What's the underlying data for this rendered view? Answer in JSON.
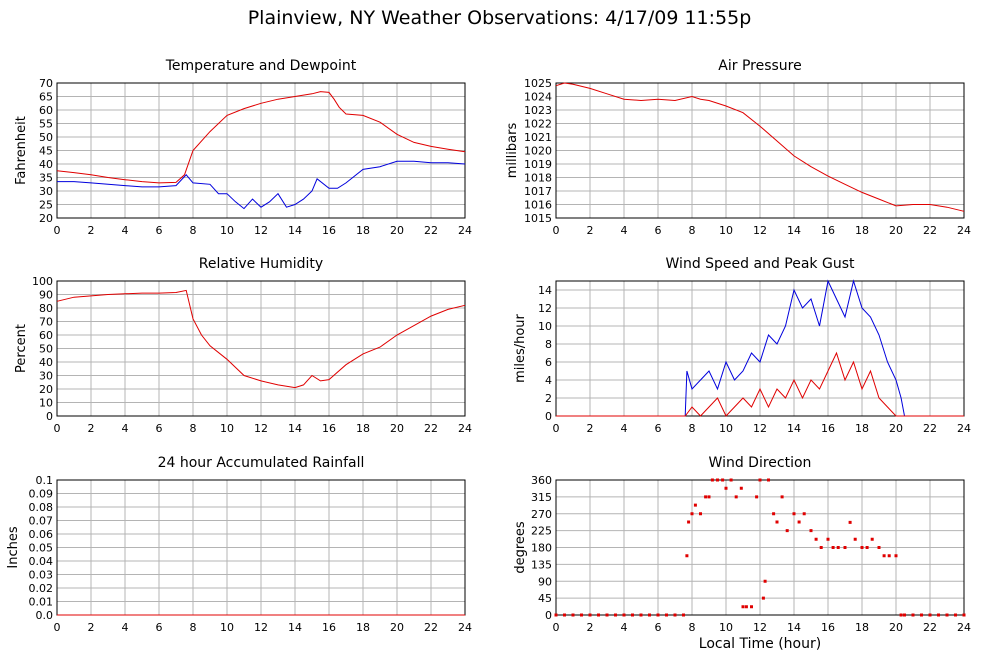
{
  "title": "Plainview, NY Weather Observations: 4/17/09 11:55p",
  "xlabel": "Local Time (hour)",
  "colors": {
    "red": "#e00000",
    "blue": "#0000dd",
    "grid": "#b4b4b4",
    "axis": "#000000"
  },
  "chart_data": [
    {
      "type": "line",
      "title": "Temperature and Dewpoint",
      "ylabel": "Fahrenheit",
      "xlim": [
        0,
        24
      ],
      "ylim": [
        20,
        70
      ],
      "xticks": [
        0,
        2,
        4,
        6,
        8,
        10,
        12,
        14,
        16,
        18,
        20,
        22,
        24
      ],
      "yticks": [
        20,
        25,
        30,
        35,
        40,
        45,
        50,
        55,
        60,
        65,
        70
      ],
      "grid": true,
      "series": [
        {
          "color": "red",
          "x": [
            0,
            1,
            2,
            3,
            4,
            5,
            6,
            7,
            7.5,
            8,
            9,
            10,
            11,
            12,
            13,
            14,
            15,
            15.5,
            16,
            16.3,
            16.6,
            17,
            18,
            19,
            20,
            21,
            22,
            23,
            24
          ],
          "y": [
            37.5,
            36.8,
            36,
            35,
            34.2,
            33.5,
            33,
            33.2,
            36,
            45,
            52,
            58,
            60.5,
            62.5,
            64,
            65,
            66,
            66.8,
            66.5,
            64,
            61,
            58.5,
            58,
            55.5,
            51,
            48,
            46.5,
            45.5,
            44.5
          ]
        },
        {
          "color": "blue",
          "x": [
            0,
            1,
            2,
            3,
            4,
            5,
            6,
            7,
            7.6,
            8,
            9,
            9.5,
            10,
            10.5,
            11,
            11.5,
            12,
            12.5,
            13,
            13.5,
            14,
            14.5,
            15,
            15.3,
            16,
            16.5,
            17,
            18,
            19,
            20,
            21,
            22,
            23,
            24
          ],
          "y": [
            33.5,
            33.5,
            33,
            32.5,
            32,
            31.5,
            31.5,
            32,
            36,
            33,
            32.5,
            29,
            29,
            26,
            23.5,
            27,
            24,
            26,
            29,
            24,
            25,
            27,
            30,
            34.5,
            31,
            31,
            33,
            38,
            39,
            41,
            41,
            40.5,
            40.5,
            40
          ]
        }
      ]
    },
    {
      "type": "line",
      "title": "Air Pressure",
      "ylabel": "millibars",
      "xlim": [
        0,
        24
      ],
      "ylim": [
        1015,
        1025
      ],
      "xticks": [
        0,
        2,
        4,
        6,
        8,
        10,
        12,
        14,
        16,
        18,
        20,
        22,
        24
      ],
      "yticks": [
        1015,
        1016,
        1017,
        1018,
        1019,
        1020,
        1021,
        1022,
        1023,
        1024,
        1025
      ],
      "grid": true,
      "series": [
        {
          "color": "red",
          "x": [
            0,
            0.5,
            1,
            2,
            3,
            4,
            5,
            6,
            7,
            8,
            8.5,
            9,
            10,
            11,
            12,
            13,
            14,
            15,
            16,
            17,
            18,
            19,
            20,
            21,
            22,
            23,
            24
          ],
          "y": [
            1024.8,
            1025,
            1024.9,
            1024.6,
            1024.2,
            1023.8,
            1023.7,
            1023.8,
            1023.7,
            1024,
            1023.8,
            1023.7,
            1023.3,
            1022.8,
            1021.8,
            1020.7,
            1019.6,
            1018.8,
            1018.1,
            1017.5,
            1016.9,
            1016.4,
            1015.9,
            1016,
            1016,
            1015.8,
            1015.5
          ]
        }
      ]
    },
    {
      "type": "line",
      "title": "Relative Humidity",
      "ylabel": "Percent",
      "xlim": [
        0,
        24
      ],
      "ylim": [
        0,
        100
      ],
      "xticks": [
        0,
        2,
        4,
        6,
        8,
        10,
        12,
        14,
        16,
        18,
        20,
        22,
        24
      ],
      "yticks": [
        0,
        10,
        20,
        30,
        40,
        50,
        60,
        70,
        80,
        90,
        100
      ],
      "grid": true,
      "series": [
        {
          "color": "red",
          "x": [
            0,
            1,
            2,
            3,
            4,
            5,
            6,
            7,
            7.6,
            8,
            8.5,
            9,
            10,
            11,
            12,
            13,
            14,
            14.5,
            15,
            15.5,
            16,
            17,
            18,
            19,
            20,
            21,
            22,
            23,
            24
          ],
          "y": [
            85,
            88,
            89,
            90,
            90.5,
            91,
            91,
            91.5,
            93,
            72,
            60,
            52,
            42,
            30,
            26,
            23,
            21,
            23,
            30,
            26,
            27,
            38,
            46,
            51,
            60,
            67,
            74,
            79,
            82
          ]
        }
      ]
    },
    {
      "type": "line",
      "title": "Wind Speed and Peak Gust",
      "ylabel": "miles/hour",
      "xlim": [
        0,
        24
      ],
      "ylim": [
        0,
        15
      ],
      "xticks": [
        0,
        2,
        4,
        6,
        8,
        10,
        12,
        14,
        16,
        18,
        20,
        22,
        24
      ],
      "yticks": [
        0,
        2,
        4,
        6,
        8,
        10,
        12,
        14
      ],
      "grid": true,
      "series": [
        {
          "color": "blue",
          "x": [
            0,
            7.6,
            7.7,
            8,
            8.5,
            9,
            9.5,
            10,
            10.5,
            11,
            11.5,
            12,
            12.5,
            13,
            13.5,
            14,
            14.5,
            15,
            15.5,
            16,
            16.5,
            17,
            17.5,
            18,
            18.5,
            19,
            19.5,
            20,
            20.3,
            20.5,
            24
          ],
          "y": [
            0,
            0,
            5,
            3,
            4,
            5,
            3,
            6,
            4,
            5,
            7,
            6,
            9,
            8,
            10,
            14,
            12,
            13,
            10,
            15,
            13,
            11,
            15,
            12,
            11,
            9,
            6,
            4,
            2,
            0,
            0
          ]
        },
        {
          "color": "red",
          "x": [
            0,
            7.6,
            8,
            8.5,
            9,
            9.5,
            10,
            10.5,
            11,
            11.5,
            12,
            12.5,
            13,
            13.5,
            14,
            14.5,
            15,
            15.5,
            16,
            16.5,
            17,
            17.5,
            18,
            18.5,
            19,
            19.5,
            20,
            24
          ],
          "y": [
            0,
            0,
            1,
            0,
            1,
            2,
            0,
            1,
            2,
            1,
            3,
            1,
            3,
            2,
            4,
            2,
            4,
            3,
            5,
            7,
            4,
            6,
            3,
            5,
            2,
            1,
            0,
            0
          ]
        }
      ]
    },
    {
      "type": "line",
      "title": "24 hour Accumulated Rainfall",
      "ylabel": "Inches",
      "xlim": [
        0,
        24
      ],
      "ylim": [
        0,
        0.1
      ],
      "xticks": [
        0,
        2,
        4,
        6,
        8,
        10,
        12,
        14,
        16,
        18,
        20,
        22,
        24
      ],
      "yticks": [
        0.0,
        0.01,
        0.02,
        0.03,
        0.04,
        0.05,
        0.06,
        0.07,
        0.08,
        0.09,
        0.1
      ],
      "yticklabels": [
        "0.0",
        "0.01",
        "0.02",
        "0.03",
        "0.04",
        "0.05",
        "0.06",
        "0.07",
        "0.08",
        "0.09",
        "0.1"
      ],
      "grid": true,
      "series": [
        {
          "color": "red",
          "x": [
            0,
            24
          ],
          "y": [
            0,
            0
          ]
        }
      ]
    },
    {
      "type": "scatter",
      "title": "Wind Direction",
      "ylabel": "degrees",
      "xlim": [
        0,
        24
      ],
      "ylim": [
        0,
        360
      ],
      "xticks": [
        0,
        2,
        4,
        6,
        8,
        10,
        12,
        14,
        16,
        18,
        20,
        22,
        24
      ],
      "yticks": [
        0,
        45,
        90,
        135,
        180,
        225,
        270,
        315,
        360
      ],
      "grid": true,
      "series": [
        {
          "color": "red",
          "x": [
            0,
            0.5,
            1,
            1.5,
            2,
            2.5,
            3,
            3.5,
            4,
            4.5,
            5,
            5.5,
            6,
            6.5,
            7,
            7.5,
            7.7,
            7.8,
            8,
            8.2,
            8.5,
            8.8,
            9,
            9.2,
            9.5,
            9.8,
            10,
            10.3,
            10.6,
            10.9,
            11,
            11.2,
            11.5,
            11.8,
            12,
            12.2,
            12.3,
            12.5,
            12.8,
            13,
            13.3,
            13.6,
            14,
            14.3,
            14.6,
            15,
            15.3,
            15.6,
            16,
            16.3,
            16.6,
            17,
            17.3,
            17.6,
            18,
            18.3,
            18.6,
            19,
            19.3,
            19.6,
            20,
            20.3,
            20.5,
            21,
            21.5,
            22,
            22.5,
            23,
            23.5,
            24
          ],
          "y": [
            0,
            0,
            0,
            0,
            0,
            0,
            0,
            0,
            0,
            0,
            0,
            0,
            0,
            0,
            0,
            0,
            158,
            248,
            270,
            293,
            270,
            315,
            315,
            360,
            360,
            360,
            338,
            360,
            315,
            338,
            22,
            22,
            22,
            315,
            360,
            45,
            90,
            360,
            270,
            248,
            315,
            225,
            270,
            248,
            270,
            225,
            202,
            180,
            202,
            180,
            180,
            180,
            247,
            202,
            180,
            180,
            202,
            180,
            158,
            158,
            158,
            0,
            0,
            0,
            0,
            0,
            0,
            0,
            0,
            0
          ]
        }
      ]
    }
  ]
}
